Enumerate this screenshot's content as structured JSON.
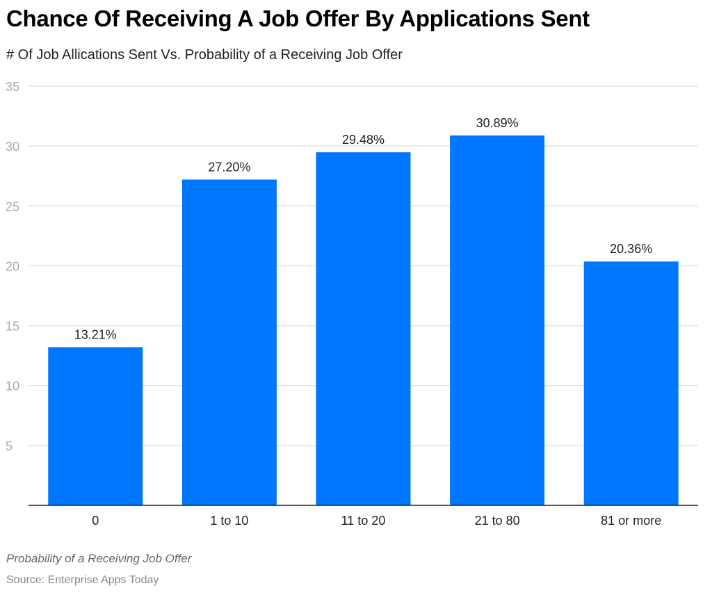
{
  "chart_data": {
    "type": "bar",
    "title": "Chance Of Receiving A Job Offer By Applications Sent",
    "subtitle": "# Of Job Allications Sent Vs. Probability of a Receiving Job Offer",
    "categories": [
      "0",
      "1 to 10",
      "11 to 20",
      "21 to 80",
      "81 or more"
    ],
    "values": [
      13.21,
      27.2,
      29.48,
      30.89,
      20.36
    ],
    "data_labels": [
      "13.21%",
      "27.20%",
      "29.48%",
      "30.89%",
      "20.36%"
    ],
    "xlabel": "",
    "ylabel": "",
    "ylim": [
      0,
      35
    ],
    "yticks": [
      5,
      10,
      15,
      20,
      25,
      30,
      35
    ],
    "grid": true,
    "legend": "none",
    "bar_color": "#0077FF"
  },
  "footer": {
    "note": "Probability of a Receiving Job Offer",
    "source": "Source: Enterprise Apps Today"
  }
}
